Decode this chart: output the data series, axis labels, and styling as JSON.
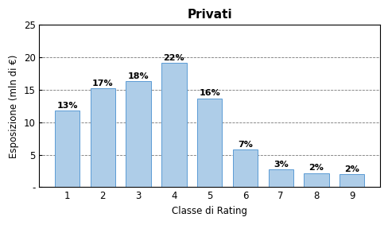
{
  "title": "Privati",
  "categories": [
    1,
    2,
    3,
    4,
    5,
    6,
    7,
    8,
    9
  ],
  "values": [
    11.8,
    15.2,
    16.3,
    19.2,
    13.7,
    5.8,
    2.7,
    2.2,
    2.0
  ],
  "percentages": [
    "13%",
    "17%",
    "18%",
    "22%",
    "16%",
    "7%",
    "3%",
    "2%",
    "2%"
  ],
  "bar_color": "#AECDE8",
  "bar_edgecolor": "#5B9BD5",
  "xlabel": "Classe di Rating",
  "ylabel": "Esposizione (mln di €)",
  "ylim": [
    0,
    25
  ],
  "yticks": [
    0,
    5,
    10,
    15,
    20,
    25
  ],
  "ytick_labels": [
    "-",
    "5",
    "10",
    "15",
    "20",
    "25"
  ],
  "grid_color": "#444444",
  "background_color": "#FFFFFF",
  "title_fontsize": 11,
  "label_fontsize": 8.5,
  "tick_fontsize": 8.5,
  "pct_fontsize": 8
}
